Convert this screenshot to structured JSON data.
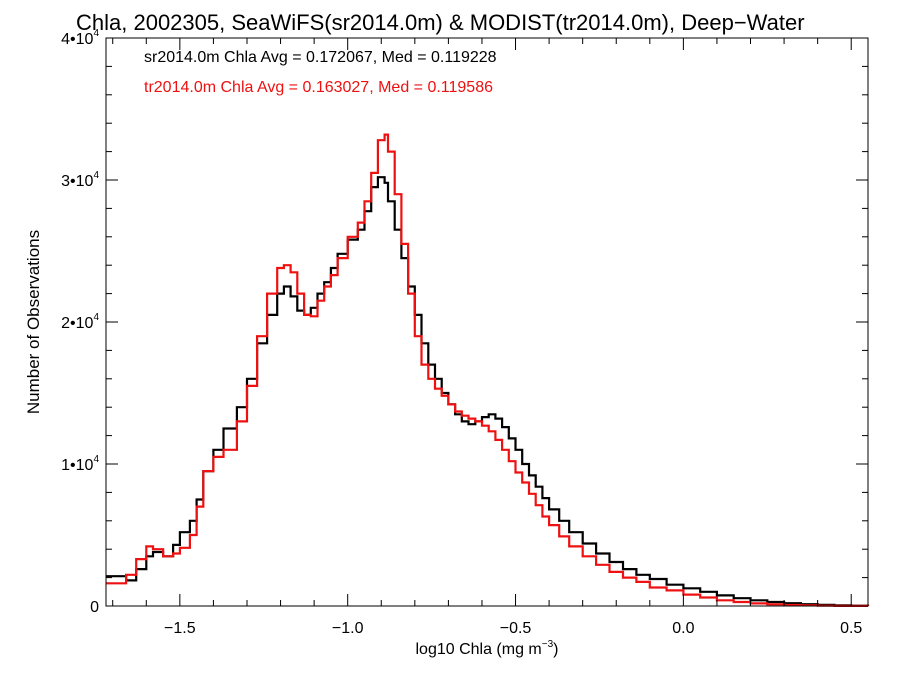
{
  "chart_data": {
    "type": "line",
    "title": "Chla, 2002305, SeaWiFS(sr2014.0m) & MODIST(tr2014.0m), Deep−Water",
    "xlabel_main": "log10 Chla (mg m",
    "xlabel_sup": "−3",
    "xlabel_close": ")",
    "ylabel": "Number of Observations",
    "xlim": [
      -1.72,
      0.55
    ],
    "ylim": [
      0,
      40000
    ],
    "x_ticks": [
      {
        "value": -1.5,
        "label": "−1.5"
      },
      {
        "value": -1.0,
        "label": "−1.0"
      },
      {
        "value": -0.5,
        "label": "−0.5"
      },
      {
        "value": 0.0,
        "label": "0.0"
      },
      {
        "value": 0.5,
        "label": "0.5"
      }
    ],
    "y_ticks": [
      {
        "value": 0,
        "label": "0",
        "sup": ""
      },
      {
        "value": 10000,
        "label": "1•10",
        "sup": "4"
      },
      {
        "value": 20000,
        "label": "2•10",
        "sup": "4"
      },
      {
        "value": 30000,
        "label": "3•10",
        "sup": "4"
      },
      {
        "value": 40000,
        "label": "4•10",
        "sup": "4"
      }
    ],
    "grid": false,
    "legend_position": "top-left",
    "series": [
      {
        "name": "sr2014.0m Chla Avg = 0.172067, Med = 0.119228",
        "color": "#000000",
        "style": "step",
        "x": [
          -1.72,
          -1.66,
          -1.63,
          -1.6,
          -1.58,
          -1.55,
          -1.52,
          -1.5,
          -1.47,
          -1.45,
          -1.43,
          -1.4,
          -1.37,
          -1.33,
          -1.3,
          -1.27,
          -1.24,
          -1.21,
          -1.19,
          -1.17,
          -1.15,
          -1.13,
          -1.11,
          -1.09,
          -1.07,
          -1.05,
          -1.03,
          -1.0,
          -0.97,
          -0.95,
          -0.93,
          -0.91,
          -0.89,
          -0.88,
          -0.86,
          -0.84,
          -0.82,
          -0.8,
          -0.78,
          -0.76,
          -0.74,
          -0.72,
          -0.7,
          -0.68,
          -0.66,
          -0.64,
          -0.62,
          -0.6,
          -0.58,
          -0.56,
          -0.54,
          -0.52,
          -0.5,
          -0.48,
          -0.46,
          -0.44,
          -0.42,
          -0.4,
          -0.37,
          -0.34,
          -0.3,
          -0.26,
          -0.22,
          -0.18,
          -0.14,
          -0.1,
          -0.05,
          0.0,
          0.05,
          0.1,
          0.15,
          0.2,
          0.25,
          0.3,
          0.35,
          0.4,
          0.45,
          0.5,
          0.55
        ],
        "y": [
          2100,
          1800,
          2600,
          3500,
          3800,
          3500,
          4300,
          5200,
          6000,
          7500,
          9500,
          11000,
          12500,
          14000,
          16000,
          18500,
          20500,
          22000,
          22500,
          21800,
          20800,
          20500,
          21000,
          22000,
          22800,
          23800,
          24800,
          25800,
          26500,
          27800,
          29500,
          30200,
          29800,
          28500,
          26500,
          24500,
          22500,
          20500,
          18500,
          17000,
          16000,
          15000,
          14200,
          13500,
          13000,
          12800,
          13000,
          13300,
          13500,
          13200,
          12600,
          11800,
          11000,
          10000,
          9200,
          8400,
          7600,
          6800,
          6000,
          5200,
          4400,
          3700,
          3100,
          2600,
          2200,
          1900,
          1500,
          1250,
          1000,
          750,
          550,
          400,
          280,
          200,
          130,
          80,
          40,
          20,
          10
        ]
      },
      {
        "name": "tr2014.0m Chla Avg = 0.163027, Med = 0.119586",
        "color": "#ee1111",
        "style": "step",
        "x": [
          -1.72,
          -1.66,
          -1.63,
          -1.6,
          -1.58,
          -1.55,
          -1.52,
          -1.5,
          -1.47,
          -1.45,
          -1.43,
          -1.4,
          -1.37,
          -1.33,
          -1.3,
          -1.27,
          -1.24,
          -1.21,
          -1.19,
          -1.17,
          -1.15,
          -1.13,
          -1.11,
          -1.09,
          -1.07,
          -1.05,
          -1.03,
          -1.0,
          -0.97,
          -0.95,
          -0.93,
          -0.91,
          -0.89,
          -0.88,
          -0.86,
          -0.84,
          -0.82,
          -0.8,
          -0.78,
          -0.76,
          -0.74,
          -0.72,
          -0.7,
          -0.68,
          -0.66,
          -0.64,
          -0.62,
          -0.6,
          -0.58,
          -0.56,
          -0.54,
          -0.52,
          -0.5,
          -0.48,
          -0.46,
          -0.44,
          -0.42,
          -0.4,
          -0.37,
          -0.34,
          -0.3,
          -0.26,
          -0.22,
          -0.18,
          -0.14,
          -0.1,
          -0.05,
          0.0,
          0.05,
          0.1,
          0.15,
          0.2,
          0.25,
          0.3,
          0.35,
          0.4,
          0.45,
          0.5,
          0.55
        ],
        "y": [
          1600,
          2200,
          3300,
          4200,
          4000,
          3500,
          3700,
          4100,
          5000,
          7000,
          9500,
          10500,
          11000,
          13000,
          15500,
          19000,
          22000,
          23800,
          24000,
          23500,
          22000,
          20500,
          20400,
          21500,
          22500,
          23300,
          24500,
          26000,
          27000,
          28500,
          30500,
          32800,
          33200,
          32000,
          29000,
          25500,
          22000,
          19000,
          17000,
          16000,
          15300,
          14800,
          14200,
          13700,
          13400,
          13200,
          13000,
          12700,
          12300,
          11700,
          11000,
          10200,
          9400,
          8700,
          7900,
          7100,
          6300,
          5700,
          4900,
          4200,
          3500,
          2900,
          2400,
          2000,
          1700,
          1300,
          1100,
          800,
          600,
          400,
          280,
          180,
          120,
          70,
          40,
          20,
          10,
          5,
          0
        ]
      }
    ]
  }
}
